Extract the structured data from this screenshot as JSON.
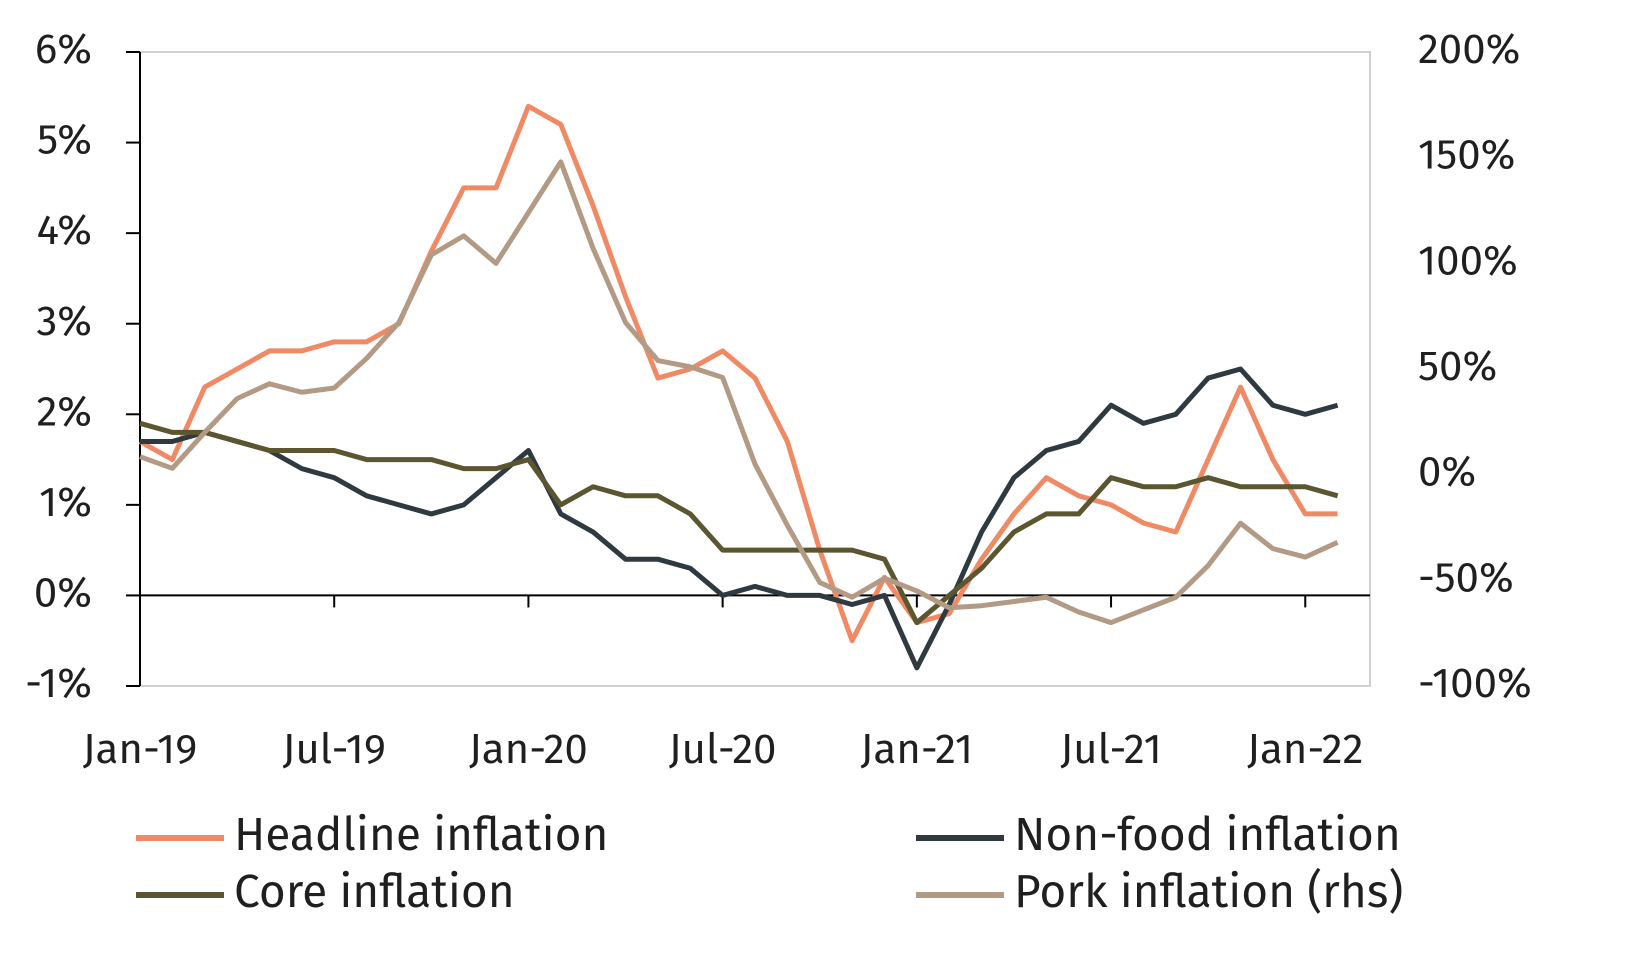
{
  "chart_data": {
    "type": "line",
    "categories": [
      "Jan-19",
      null,
      null,
      null,
      null,
      null,
      "Jul-19",
      null,
      null,
      null,
      null,
      null,
      "Jan-20",
      null,
      null,
      null,
      null,
      null,
      "Jul-20",
      null,
      null,
      null,
      null,
      null,
      "Jan-21",
      null,
      null,
      null,
      null,
      null,
      "Jul-21",
      null,
      null,
      null,
      null,
      null,
      "Jan-22",
      null
    ],
    "series": [
      {
        "name": "Headline inflation",
        "color": "#f08a65",
        "values": [
          1.7,
          1.5,
          2.3,
          2.5,
          2.7,
          2.7,
          2.8,
          2.8,
          3.0,
          3.8,
          4.5,
          4.5,
          5.4,
          5.2,
          4.3,
          3.3,
          2.4,
          2.5,
          2.7,
          2.4,
          1.7,
          0.5,
          -0.5,
          0.2,
          -0.3,
          -0.2,
          0.4,
          0.9,
          1.3,
          1.1,
          1.0,
          0.8,
          0.7,
          1.5,
          2.3,
          1.5,
          0.9,
          0.9
        ]
      },
      {
        "name": "Non-food inflation",
        "color": "#2e3a40",
        "values": [
          1.7,
          1.7,
          1.8,
          1.7,
          1.6,
          1.4,
          1.3,
          1.1,
          1.0,
          0.9,
          1.0,
          1.3,
          1.6,
          0.9,
          0.7,
          0.4,
          0.4,
          0.3,
          0.0,
          0.1,
          0.0,
          0.0,
          -0.1,
          0.0,
          -0.8,
          -0.1,
          0.7,
          1.3,
          1.6,
          1.7,
          2.1,
          1.9,
          2.0,
          2.4,
          2.5,
          2.1,
          2.0,
          2.1
        ]
      },
      {
        "name": "Core inflation",
        "color": "#5b5530",
        "values": [
          1.9,
          1.8,
          1.8,
          1.7,
          1.6,
          1.6,
          1.6,
          1.5,
          1.5,
          1.5,
          1.4,
          1.4,
          1.5,
          1.0,
          1.2,
          1.1,
          1.1,
          0.9,
          0.5,
          0.5,
          0.5,
          0.5,
          0.5,
          0.4,
          -0.3,
          0.0,
          0.3,
          0.7,
          0.9,
          0.9,
          1.3,
          1.2,
          1.2,
          1.3,
          1.2,
          1.2,
          1.2,
          1.1
        ]
      },
      {
        "name": "Pork inflation (rhs)",
        "color": "#b39a85",
        "axis": "y2",
        "values": [
          8.5,
          3,
          20,
          36,
          43,
          39,
          41,
          55,
          72,
          104,
          113,
          100,
          124,
          148,
          107,
          72,
          54,
          51,
          46,
          5,
          -24,
          -51,
          -58,
          -49,
          -55,
          -63,
          -62,
          -60,
          -58,
          -65,
          -70,
          -64,
          -58,
          -43,
          -23,
          -35,
          -39,
          -32
        ]
      }
    ],
    "ylim": [
      -1,
      6
    ],
    "yticks": [
      {
        "value": -1,
        "label": "-1%"
      },
      {
        "value": 0,
        "label": "0%"
      },
      {
        "value": 1,
        "label": "1%"
      },
      {
        "value": 2,
        "label": "2%"
      },
      {
        "value": 3,
        "label": "3%"
      },
      {
        "value": 4,
        "label": "4%"
      },
      {
        "value": 5,
        "label": "5%"
      },
      {
        "value": 6,
        "label": "6%"
      }
    ],
    "y2lim": [
      -100,
      200
    ],
    "y2ticks": [
      {
        "value": -100,
        "label": "-100%"
      },
      {
        "value": -50,
        "label": "-50%"
      },
      {
        "value": 0,
        "label": "0%"
      },
      {
        "value": 50,
        "label": "50%"
      },
      {
        "value": 100,
        "label": "100%"
      },
      {
        "value": 150,
        "label": "150%"
      },
      {
        "value": 200,
        "label": "200%"
      }
    ],
    "legend": "bottom"
  }
}
